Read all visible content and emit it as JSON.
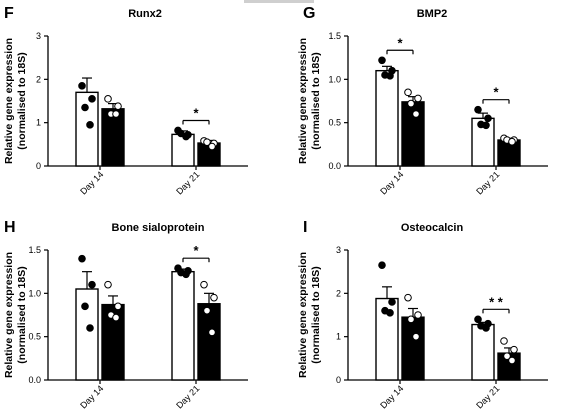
{
  "chart_data": [
    {
      "panel": "F",
      "type": "bar",
      "title": "Runx2",
      "ylabel": "Relative gene expression\n(normalised to 18S)",
      "categories": [
        "Day 14",
        "Day 21"
      ],
      "ylim": [
        0,
        3
      ],
      "yticks": [
        "0",
        "1",
        "2",
        "3"
      ],
      "series": [
        {
          "fill": "#ffffff",
          "values": [
            1.7,
            0.73
          ],
          "errors": [
            0.33,
            0.08
          ],
          "points": [
            [
              1.85,
              1.55,
              1.35,
              0.95
            ],
            [
              0.82,
              0.72,
              0.75,
              0.68
            ]
          ]
        },
        {
          "fill": "#000000",
          "values": [
            1.32,
            0.53
          ],
          "errors": [
            0.12,
            0.06
          ],
          "points": [
            [
              1.55,
              1.38,
              1.2,
              1.2
            ],
            [
              0.58,
              0.52,
              0.55,
              0.45
            ]
          ]
        }
      ],
      "annotations": [
        {
          "group": 1,
          "text": "*"
        }
      ]
    },
    {
      "panel": "G",
      "type": "bar",
      "title": "BMP2",
      "ylabel": "Relative gene expression\n(normalised to 18S)",
      "categories": [
        "Day 14",
        "Day 21"
      ],
      "ylim": [
        0,
        1.5
      ],
      "yticks": [
        "0.0",
        "0.5",
        "1.0",
        "1.5"
      ],
      "series": [
        {
          "fill": "#ffffff",
          "values": [
            1.1,
            0.55
          ],
          "errors": [
            0.05,
            0.06
          ],
          "points": [
            [
              1.22,
              1.1,
              1.05,
              1.04
            ],
            [
              0.65,
              0.55,
              0.48,
              0.47
            ]
          ]
        },
        {
          "fill": "#000000",
          "values": [
            0.74,
            0.3
          ],
          "errors": [
            0.06,
            0.02
          ],
          "points": [
            [
              0.85,
              0.78,
              0.72,
              0.6
            ],
            [
              0.32,
              0.3,
              0.3,
              0.28
            ]
          ]
        }
      ],
      "annotations": [
        {
          "group": 0,
          "text": "*"
        },
        {
          "group": 1,
          "text": "*"
        }
      ]
    },
    {
      "panel": "H",
      "type": "bar",
      "title": "Bone sialoprotein",
      "ylabel": "Relative gene expression\n(normalised to 18S)",
      "categories": [
        "Day 14",
        "Day 21"
      ],
      "ylim": [
        0,
        1.5
      ],
      "yticks": [
        "0.0",
        "0.5",
        "1.0",
        "1.5"
      ],
      "series": [
        {
          "fill": "#ffffff",
          "values": [
            1.05,
            1.25
          ],
          "errors": [
            0.2,
            0.03
          ],
          "points": [
            [
              1.4,
              1.1,
              0.85,
              0.6
            ],
            [
              1.29,
              1.26,
              1.24,
              1.22
            ]
          ]
        },
        {
          "fill": "#000000",
          "values": [
            0.87,
            0.88
          ],
          "errors": [
            0.1,
            0.12
          ],
          "points": [
            [
              1.1,
              0.85,
              0.75,
              0.72
            ],
            [
              1.1,
              0.95,
              0.8,
              0.55
            ]
          ]
        }
      ],
      "annotations": [
        {
          "group": 1,
          "text": "*"
        }
      ]
    },
    {
      "panel": "I",
      "type": "bar",
      "title": "Osteocalcin",
      "ylabel": "Relative gene expression\n(normalised to 18S)",
      "categories": [
        "Day 14",
        "Day 21"
      ],
      "ylim": [
        0,
        3
      ],
      "yticks": [
        "0",
        "1",
        "2",
        "3"
      ],
      "series": [
        {
          "fill": "#ffffff",
          "values": [
            1.88,
            1.28
          ],
          "errors": [
            0.27,
            0.05
          ],
          "points": [
            [
              2.65,
              1.8,
              1.6,
              1.55
            ],
            [
              1.4,
              1.3,
              1.25,
              1.2
            ]
          ]
        },
        {
          "fill": "#000000",
          "values": [
            1.45,
            0.62
          ],
          "errors": [
            0.2,
            0.12
          ],
          "points": [
            [
              1.9,
              1.5,
              1.4,
              1.0
            ],
            [
              0.9,
              0.7,
              0.55,
              0.45
            ]
          ]
        }
      ],
      "annotations": [
        {
          "group": 1,
          "text": "* *"
        }
      ]
    }
  ]
}
